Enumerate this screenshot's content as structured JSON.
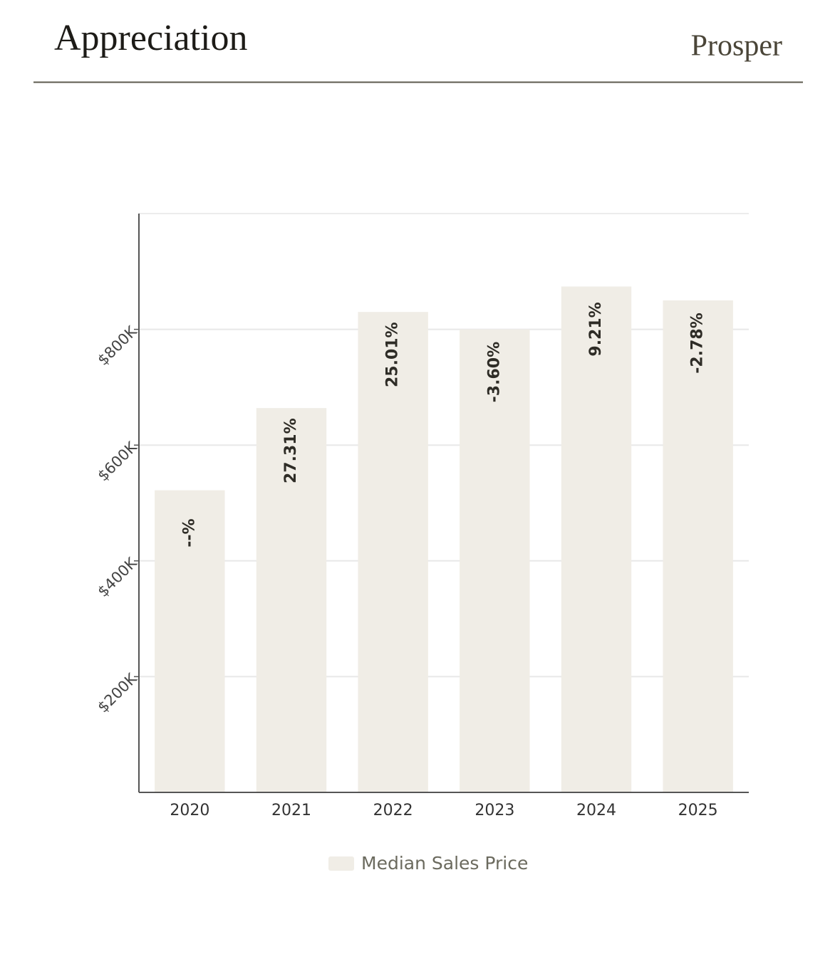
{
  "header": {
    "title": "Appreciation",
    "brand": "Prosper"
  },
  "chart_data": {
    "type": "bar",
    "categories": [
      "2020",
      "2021",
      "2022",
      "2023",
      "2024",
      "2025"
    ],
    "series": [
      {
        "name": "Median Sales Price",
        "color": "#f0ede6",
        "values": [
          522000,
          664000,
          830000,
          800000,
          874000,
          850000
        ]
      }
    ],
    "annotations": [
      "--%",
      "27.31%",
      "25.01%",
      "-3.60%",
      "9.21%",
      "-2.78%"
    ],
    "ylim": [
      0,
      1000000
    ],
    "yticks": [
      {
        "value": 200000,
        "label": "$200K"
      },
      {
        "value": 400000,
        "label": "$400K"
      },
      {
        "value": 600000,
        "label": "$600K"
      },
      {
        "value": 800000,
        "label": "$800K"
      }
    ],
    "grid": true
  }
}
